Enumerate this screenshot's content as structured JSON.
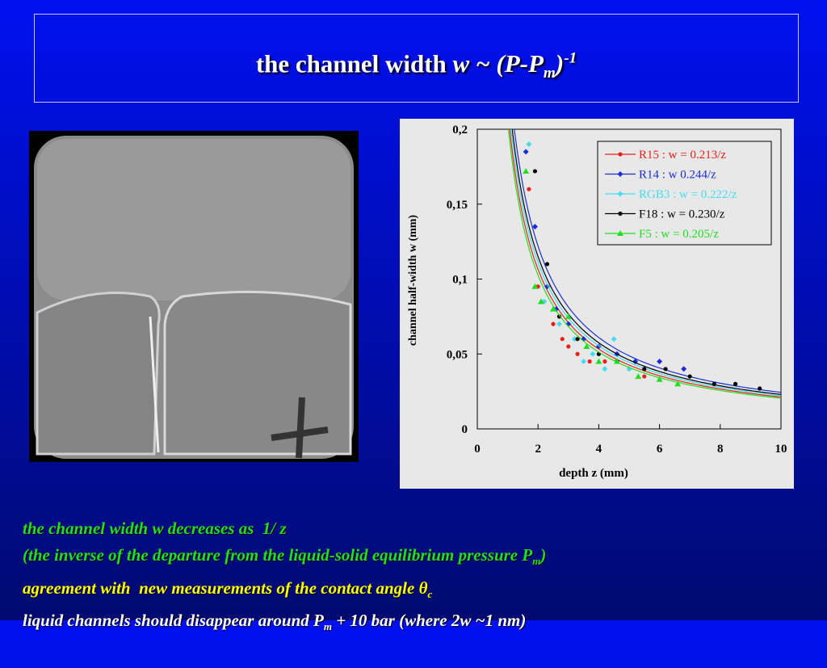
{
  "title": [
    "the channel width ",
    "w ~ (P-P",
    "m",
    ")",
    "-1"
  ],
  "bullets": [
    [
      "the channel width w decreases as  1/ z"
    ],
    [
      "(the inverse of the departure from the liquid-solid equilibrium pressure P",
      "m",
      ")"
    ],
    [
      "agreement with  new measurements of the contact angle ",
      "θ",
      "c"
    ],
    [
      "liquid channels should disappear around P",
      "m",
      " + 10 bar (where 2w ~1 nm)"
    ]
  ],
  "chart_data": {
    "type": "scatter",
    "xlabel": "depth  z  (mm)",
    "ylabel": "channel half-width w (mm)",
    "xlim": [
      0,
      10
    ],
    "ylim": [
      0,
      0.2
    ],
    "xticks": [
      0,
      2,
      4,
      6,
      8,
      10
    ],
    "yticks": [
      0,
      {
        "value": 0.05,
        "label": "0,05"
      },
      {
        "value": 0.1,
        "label": "0,1"
      },
      {
        "value": 0.15,
        "label": "0,15"
      },
      {
        "value": 0.2,
        "label": "0,2"
      }
    ],
    "series": [
      {
        "name": "R15 : w = 0.213/z",
        "color": "#e8201a",
        "fit": 0.213,
        "marker": "circle",
        "x": [
          1.7,
          2.0,
          2.2,
          2.5,
          2.8,
          3.0,
          3.3,
          3.7,
          4.2,
          5.0,
          5.5
        ],
        "values": [
          0.16,
          0.095,
          0.085,
          0.07,
          0.06,
          0.055,
          0.05,
          0.045,
          0.045,
          0.04,
          0.035
        ]
      },
      {
        "name": "R14 : w 0.244/z",
        "color": "#1a2fd0",
        "fit": 0.244,
        "marker": "diamond",
        "x": [
          1.6,
          1.9,
          2.3,
          2.6,
          3.0,
          3.5,
          4.0,
          4.6,
          5.2,
          6.0,
          6.8
        ],
        "values": [
          0.185,
          0.135,
          0.095,
          0.08,
          0.07,
          0.06,
          0.055,
          0.05,
          0.045,
          0.045,
          0.04
        ]
      },
      {
        "name": "RGB3 : w = 0.222/z",
        "color": "#44ddee",
        "fit": 0.222,
        "marker": "diamond",
        "x": [
          1.7,
          2.2,
          2.7,
          3.2,
          3.5,
          3.8,
          4.2,
          4.5,
          5.0
        ],
        "values": [
          0.19,
          0.085,
          0.07,
          0.06,
          0.045,
          0.05,
          0.04,
          0.06,
          0.04
        ]
      },
      {
        "name": "F18 : w = 0.230/z",
        "color": "#000000",
        "fit": 0.23,
        "marker": "circle",
        "x": [
          1.9,
          2.3,
          2.7,
          3.3,
          4.0,
          4.6,
          5.5,
          6.2,
          7.0,
          7.8,
          8.5,
          9.3
        ],
        "values": [
          0.172,
          0.11,
          0.075,
          0.06,
          0.05,
          0.045,
          0.04,
          0.04,
          0.035,
          0.03,
          0.03,
          0.027
        ]
      },
      {
        "name": "F5 : w = 0.205/z",
        "color": "#22dd22",
        "fit": 0.205,
        "marker": "triangle",
        "x": [
          1.6,
          1.9,
          2.1,
          2.5,
          3.0,
          3.6,
          4.0,
          4.6,
          5.3,
          6.0,
          6.6
        ],
        "values": [
          0.172,
          0.095,
          0.085,
          0.08,
          0.075,
          0.055,
          0.045,
          0.045,
          0.035,
          0.033,
          0.03
        ]
      }
    ]
  }
}
